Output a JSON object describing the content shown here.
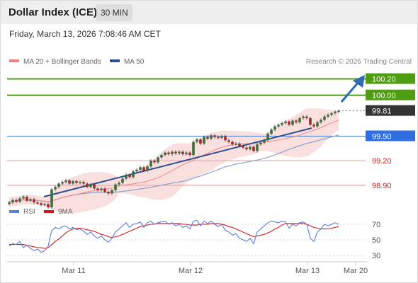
{
  "header": {
    "title": "Dollar Index (ICE)",
    "timeframe": "30 MIN",
    "datetime": "Friday, March 13, 2026 7:08:46 AM CET"
  },
  "legend": {
    "ma20": "MA 20 + Bollinger Bands",
    "ma50": "MA 50",
    "credit": "Research © 2026 Trading Central",
    "rsi": "RSI",
    "rsi_ma": "9MA"
  },
  "chart_data": [
    {
      "type": "candlestick",
      "title": "Dollar Index (ICE)",
      "timeframe": "30 MIN",
      "x_tick_labels": [
        "Mar 11",
        "Mar 12",
        "Mar 13",
        "Mar 20"
      ],
      "ylim": [
        98.57,
        100.3
      ],
      "current_price": 99.81,
      "levels": [
        {
          "label": "100.20",
          "value": 100.2,
          "kind": "resistance"
        },
        {
          "label": "100.00",
          "value": 100.0,
          "kind": "resistance"
        },
        {
          "label": "99.81",
          "value": 99.81,
          "kind": "last-price"
        },
        {
          "label": "99.50",
          "value": 99.5,
          "kind": "pivot"
        },
        {
          "label": "99.20",
          "value": 99.2,
          "kind": "support"
        },
        {
          "label": "98.90",
          "value": 98.9,
          "kind": "support"
        }
      ],
      "close": [
        98.69,
        98.72,
        98.7,
        98.74,
        98.76,
        98.71,
        98.73,
        98.69,
        98.68,
        98.66,
        98.67,
        98.63,
        98.85,
        98.88,
        98.92,
        98.94,
        98.96,
        98.92,
        98.95,
        98.93,
        98.94,
        98.92,
        98.88,
        98.91,
        98.86,
        98.84,
        98.86,
        98.82,
        98.8,
        98.84,
        98.91,
        98.93,
        98.98,
        99.03,
        99.0,
        99.07,
        99.09,
        99.12,
        99.08,
        99.13,
        99.2,
        99.18,
        99.24,
        99.27,
        99.3,
        99.28,
        99.31,
        99.29,
        99.31,
        99.28,
        99.3,
        99.27,
        99.43,
        99.46,
        99.41,
        99.49,
        99.47,
        99.51,
        99.49,
        99.48,
        99.5,
        99.45,
        99.43,
        99.4,
        99.41,
        99.38,
        99.36,
        99.34,
        99.37,
        99.32,
        99.4,
        99.42,
        99.45,
        99.53,
        99.58,
        99.62,
        99.64,
        99.66,
        99.68,
        99.64,
        99.69,
        99.67,
        99.72,
        99.74,
        99.72,
        99.64,
        99.62,
        99.67,
        99.7,
        99.74,
        99.76,
        99.78,
        99.8,
        99.81
      ],
      "open_high_low": "read from candle bodies and wicks in the image"
    },
    {
      "type": "line",
      "title": "RSI",
      "series": [
        {
          "name": "RSI"
        },
        {
          "name": "9MA"
        }
      ],
      "y_tick_labels": [
        "70",
        "50",
        "30"
      ],
      "ylim": [
        20,
        80
      ],
      "rsi": [
        42,
        45,
        44,
        48,
        40,
        43,
        39,
        36,
        38,
        34,
        36,
        42,
        62,
        66,
        64,
        67,
        68,
        64,
        66,
        63,
        64,
        61,
        57,
        60,
        55,
        52,
        55,
        50,
        47,
        52,
        60,
        64,
        68,
        72,
        66,
        70,
        71,
        73,
        66,
        72,
        74,
        70,
        72,
        73,
        74,
        70,
        72,
        68,
        70,
        66,
        68,
        64,
        74,
        75,
        68,
        74,
        71,
        74,
        70,
        67,
        70,
        62,
        60,
        56,
        58,
        52,
        50,
        48,
        52,
        45,
        60,
        64,
        68,
        72,
        74,
        73,
        72,
        74,
        73,
        65,
        70,
        68,
        72,
        73,
        70,
        52,
        48,
        60,
        64,
        70,
        68,
        70,
        72,
        70
      ],
      "rsi_ma": [
        44,
        44,
        44,
        44,
        44,
        43,
        42,
        41,
        40,
        40,
        39,
        40,
        44,
        48,
        51,
        55,
        59,
        62,
        64,
        65,
        65,
        64,
        63,
        62,
        61,
        59,
        57,
        56,
        54,
        53,
        54,
        55,
        57,
        59,
        61,
        63,
        65,
        67,
        68,
        69,
        70,
        70,
        71,
        71,
        71,
        71,
        71,
        71,
        71,
        70,
        70,
        69,
        69,
        69,
        70,
        70,
        70,
        71,
        71,
        71,
        70,
        69,
        67,
        66,
        64,
        62,
        60,
        58,
        56,
        54,
        55,
        56,
        57,
        59,
        61,
        64,
        66,
        69,
        71,
        71,
        71,
        71,
        71,
        71,
        70,
        68,
        66,
        65,
        64,
        64,
        64,
        65,
        66,
        67
      ]
    }
  ]
}
